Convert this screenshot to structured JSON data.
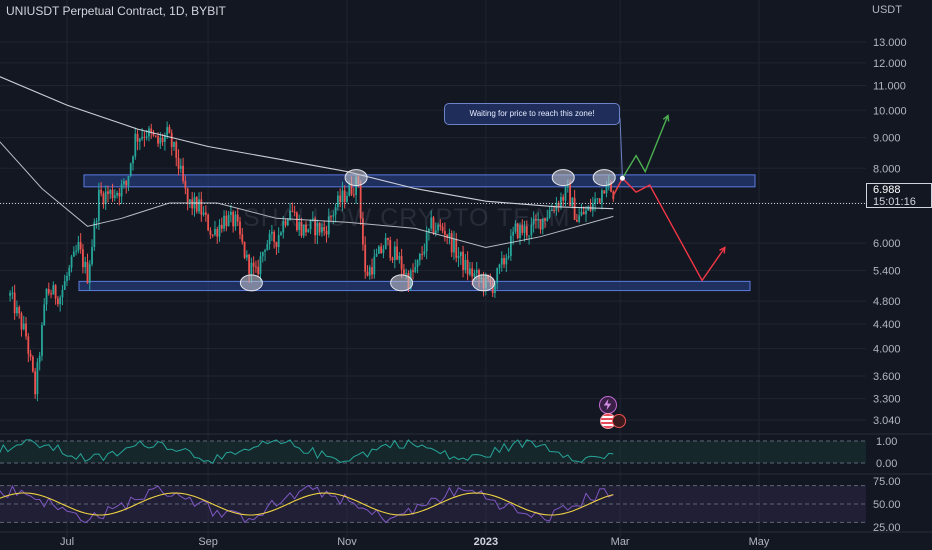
{
  "header": {
    "title": "UNIUSDT Perpetual Contract, 1D, BYBIT",
    "currency": "USDT"
  },
  "watermark": "SHALLOW CRYPTO TEAM",
  "annotation": "Waiting for price to reach this zone!",
  "last_price": {
    "value": "6.988",
    "countdown": "15:01:16"
  },
  "colors": {
    "background": "#131722",
    "up": "#26a69a",
    "down": "#ef5350",
    "zone": "#2f4da8",
    "projection_up": "#4caf50",
    "projection_down": "#f23645",
    "rsi_line": "#7e57c2",
    "stoch_signal": "#f0d343"
  },
  "icons": {
    "lightning": "lightning-icon",
    "flag": "us-flag-icon"
  },
  "chart_data": [
    {
      "type": "candlestick",
      "title": "UNIUSDT Perpetual Contract, 1D, BYBIT",
      "x_ticks": [
        {
          "label": "Jul",
          "date": "2022-07-01"
        },
        {
          "label": "Sep",
          "date": "2022-09-01"
        },
        {
          "label": "Nov",
          "date": "2022-11-01"
        },
        {
          "label": "2023",
          "date": "2023-01-01",
          "bold": true
        },
        {
          "label": "Mar",
          "date": "2023-03-01"
        },
        {
          "label": "May",
          "date": "2023-05-01"
        }
      ],
      "y_ticks": [
        "13.000",
        "12.000",
        "11.000",
        "10.000",
        "9.000",
        "8.000",
        "7.000",
        "6.000",
        "5.400",
        "4.800",
        "4.400",
        "4.000",
        "3.600",
        "3.300",
        "3.040"
      ],
      "y_scale": "log",
      "ylim": [
        2.9,
        13.5
      ],
      "resistance_zone": [
        7.45,
        7.8
      ],
      "support_zone": [
        5.0,
        5.18
      ],
      "price_path": [
        [
          "2022-06-06",
          4.9
        ],
        [
          "2022-06-13",
          4.2
        ],
        [
          "2022-06-17",
          3.4
        ],
        [
          "2022-06-22",
          5.0
        ],
        [
          "2022-06-28",
          4.9
        ],
        [
          "2022-07-02",
          5.4
        ],
        [
          "2022-07-06",
          5.9
        ],
        [
          "2022-07-10",
          5.3
        ],
        [
          "2022-07-15",
          7.2
        ],
        [
          "2022-07-22",
          7.3
        ],
        [
          "2022-07-27",
          7.5
        ],
        [
          "2022-07-31",
          9.0
        ],
        [
          "2022-08-05",
          9.2
        ],
        [
          "2022-08-10",
          8.8
        ],
        [
          "2022-08-14",
          9.1
        ],
        [
          "2022-08-18",
          8.4
        ],
        [
          "2022-08-23",
          7.0
        ],
        [
          "2022-08-28",
          6.9
        ],
        [
          "2022-09-03",
          6.2
        ],
        [
          "2022-09-08",
          6.6
        ],
        [
          "2022-09-13",
          6.5
        ],
        [
          "2022-09-18",
          5.6
        ],
        [
          "2022-09-22",
          5.3
        ],
        [
          "2022-09-26",
          6.0
        ],
        [
          "2022-10-01",
          6.1
        ],
        [
          "2022-10-07",
          6.9
        ],
        [
          "2022-10-12",
          6.3
        ],
        [
          "2022-10-17",
          6.4
        ],
        [
          "2022-10-22",
          6.3
        ],
        [
          "2022-10-27",
          6.9
        ],
        [
          "2022-11-01",
          7.3
        ],
        [
          "2022-11-06",
          7.6
        ],
        [
          "2022-11-09",
          5.3
        ],
        [
          "2022-11-12",
          5.5
        ],
        [
          "2022-11-18",
          6.0
        ],
        [
          "2022-11-24",
          5.6
        ],
        [
          "2022-11-28",
          5.2
        ],
        [
          "2022-12-02",
          5.5
        ],
        [
          "2022-12-08",
          6.4
        ],
        [
          "2022-12-14",
          6.3
        ],
        [
          "2022-12-19",
          5.8
        ],
        [
          "2022-12-24",
          5.4
        ],
        [
          "2022-12-30",
          5.2
        ],
        [
          "2023-01-04",
          5.1
        ],
        [
          "2023-01-09",
          5.6
        ],
        [
          "2023-01-14",
          6.3
        ],
        [
          "2023-01-20",
          6.3
        ],
        [
          "2023-01-26",
          6.6
        ],
        [
          "2023-02-01",
          7.0
        ],
        [
          "2023-02-06",
          7.3
        ],
        [
          "2023-02-10",
          6.6
        ],
        [
          "2023-02-15",
          6.8
        ],
        [
          "2023-02-20",
          7.2
        ],
        [
          "2023-02-23",
          7.7
        ],
        [
          "2023-02-26",
          6.99
        ]
      ],
      "ma_200": [
        [
          "2022-06-01",
          11.4
        ],
        [
          "2022-07-01",
          10.2
        ],
        [
          "2022-08-01",
          9.3
        ],
        [
          "2022-09-01",
          8.7
        ],
        [
          "2022-10-01",
          8.3
        ],
        [
          "2022-11-01",
          7.9
        ],
        [
          "2022-12-01",
          7.4
        ],
        [
          "2023-01-01",
          7.05
        ],
        [
          "2023-02-01",
          6.9
        ],
        [
          "2023-02-26",
          6.85
        ]
      ],
      "ma_50": [
        [
          "2022-06-01",
          8.9
        ],
        [
          "2022-06-20",
          7.4
        ],
        [
          "2022-07-10",
          6.4
        ],
        [
          "2022-07-25",
          6.6
        ],
        [
          "2022-08-15",
          7.0
        ],
        [
          "2022-09-05",
          7.0
        ],
        [
          "2022-10-01",
          6.6
        ],
        [
          "2022-11-01",
          6.5
        ],
        [
          "2022-12-01",
          6.35
        ],
        [
          "2023-01-01",
          5.9
        ],
        [
          "2023-01-25",
          6.15
        ],
        [
          "2023-02-26",
          6.65
        ]
      ],
      "projection_bull": [
        [
          "2023-02-26",
          7.2
        ],
        [
          "2023-03-02",
          7.7
        ],
        [
          "2023-03-08",
          8.4
        ],
        [
          "2023-03-12",
          7.9
        ],
        [
          "2023-03-22",
          9.8
        ]
      ],
      "projection_bear": [
        [
          "2023-02-26",
          7.2
        ],
        [
          "2023-03-02",
          7.7
        ],
        [
          "2023-03-08",
          7.3
        ],
        [
          "2023-03-14",
          7.5
        ],
        [
          "2023-03-28",
          6.0
        ],
        [
          "2023-04-06",
          5.2
        ],
        [
          "2023-04-16",
          5.9
        ]
      ],
      "highlight_dates": [
        "2022-09-20",
        "2022-11-05",
        "2022-11-25",
        "2022-12-31",
        "2023-02-04",
        "2023-02-22"
      ]
    },
    {
      "type": "line",
      "panel": "oscillator",
      "y_ticks": [
        "1.00",
        "0.00"
      ],
      "ylim": [
        -0.1,
        1.1
      ]
    },
    {
      "type": "line",
      "panel": "rsi",
      "y_ticks": [
        "75.00",
        "50.00",
        "25.00"
      ],
      "ylim": [
        25,
        75
      ]
    }
  ]
}
